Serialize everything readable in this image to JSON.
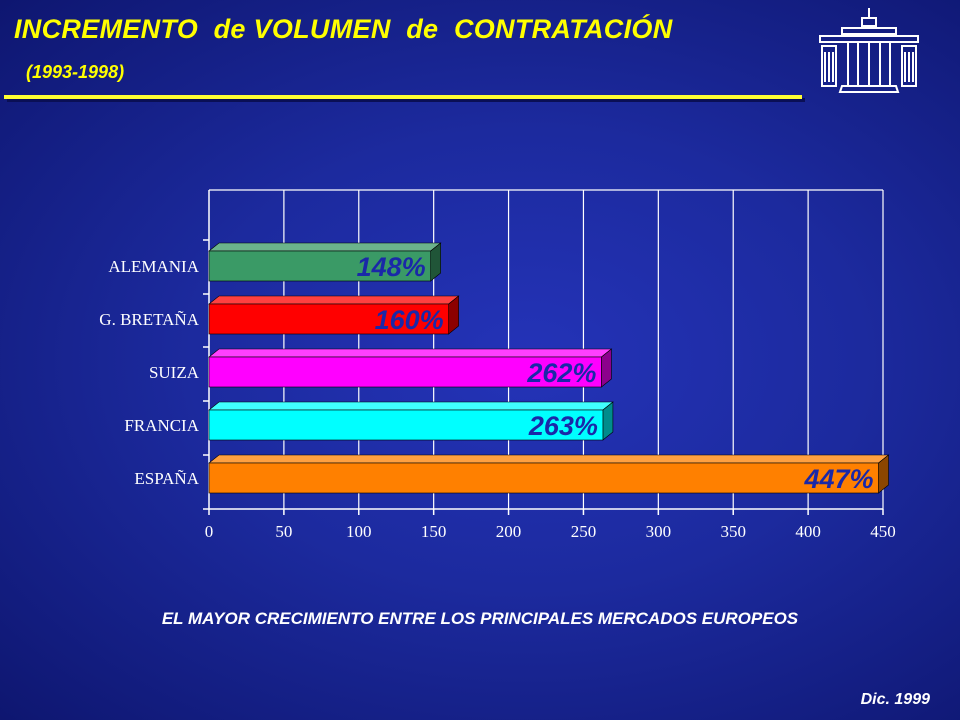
{
  "header": {
    "title": "INCREMENTO  de VOLUMEN  de  CONTRATACIÓN",
    "subtitle": "(1993-1998)"
  },
  "logo": {
    "icon": "columned-building-icon"
  },
  "chart_data": {
    "type": "bar",
    "orientation": "horizontal",
    "categories": [
      "ALEMANIA",
      "G. BRETAÑA",
      "SUIZA",
      "FRANCIA",
      "ESPAÑA"
    ],
    "values": [
      148,
      160,
      262,
      263,
      447
    ],
    "data_labels": [
      "148%",
      "160%",
      "262%",
      "263%",
      "447%"
    ],
    "colors": [
      "#3a9a66",
      "#ff0000",
      "#ff00ff",
      "#00ffff",
      "#ff8000"
    ],
    "xlim": [
      0,
      450
    ],
    "xticks": [
      0,
      50,
      100,
      150,
      200,
      250,
      300,
      350,
      400,
      450
    ],
    "grid": true,
    "legend": "none"
  },
  "footer": {
    "caption": "EL  MAYOR CRECIMIENTO ENTRE LOS PRINCIPALES MERCADOS EUROPEOS",
    "date": "Dic. 1999"
  }
}
